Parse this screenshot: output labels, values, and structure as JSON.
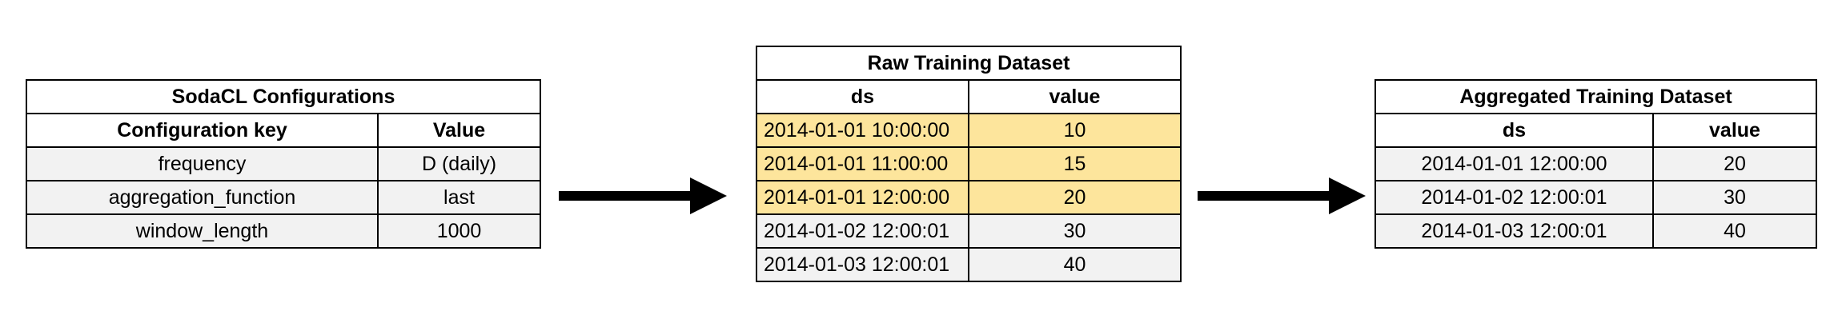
{
  "config_table": {
    "title": "SodaCL Configurations",
    "headers": [
      "Configuration key",
      "Value"
    ],
    "rows": [
      [
        "frequency",
        "D (daily)"
      ],
      [
        "aggregation_function",
        "last"
      ],
      [
        "window_length",
        "1000"
      ]
    ]
  },
  "raw_table": {
    "title": "Raw Training Dataset",
    "headers": [
      "ds",
      "value"
    ],
    "rows": [
      [
        "2014-01-01 10:00:00",
        "10"
      ],
      [
        "2014-01-01 11:00:00",
        "15"
      ],
      [
        "2014-01-01 12:00:00",
        "20"
      ],
      [
        "2014-01-02 12:00:01",
        "30"
      ],
      [
        "2014-01-03 12:00:01",
        "40"
      ]
    ],
    "highlight_color": "#fde59c"
  },
  "agg_table": {
    "title": "Aggregated Training Dataset",
    "headers": [
      "ds",
      "value"
    ],
    "rows": [
      [
        "2014-01-01 12:00:00",
        "20"
      ],
      [
        "2014-01-02 12:00:01",
        "30"
      ],
      [
        "2014-01-03 12:00:01",
        "40"
      ]
    ]
  },
  "colors": {
    "cell_background": "#f2f2f2",
    "highlight": "#fde59c",
    "border": "#000000"
  },
  "icons": [
    "arrow-right-icon",
    "arrow-right-icon"
  ]
}
